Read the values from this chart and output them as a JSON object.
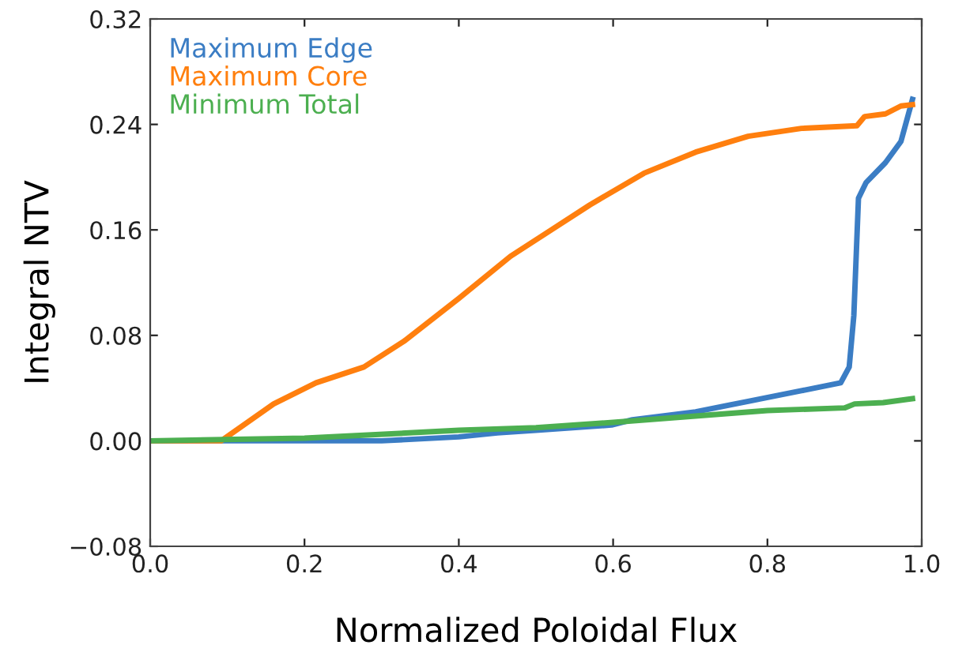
{
  "chart_data": {
    "type": "line",
    "xlabel": "Normalized Poloidal Flux",
    "ylabel": "Integral NTV",
    "xlim": [
      0.0,
      1.0
    ],
    "ylim": [
      -0.08,
      0.32
    ],
    "xticks": [
      {
        "value": 0.0,
        "label": "0.0"
      },
      {
        "value": 0.2,
        "label": "0.2"
      },
      {
        "value": 0.4,
        "label": "0.4"
      },
      {
        "value": 0.6,
        "label": "0.6"
      },
      {
        "value": 0.8,
        "label": "0.8"
      },
      {
        "value": 1.0,
        "label": "1.0"
      }
    ],
    "yticks": [
      {
        "value": -0.08,
        "label": "−0.08"
      },
      {
        "value": 0.0,
        "label": "0.00"
      },
      {
        "value": 0.08,
        "label": "0.08"
      },
      {
        "value": 0.16,
        "label": "0.16"
      },
      {
        "value": 0.24,
        "label": "0.24"
      },
      {
        "value": 0.32,
        "label": "0.32"
      }
    ],
    "grid": false,
    "legend": "top left",
    "marker": "none",
    "line_style": "solid",
    "series": [
      {
        "name": "Maximum Edge",
        "color": "#3b7dc4",
        "x": [
          0.0,
          0.2,
          0.3,
          0.4,
          0.45,
          0.5,
          0.598,
          0.625,
          0.707,
          0.775,
          0.844,
          0.895,
          0.906,
          0.912,
          0.918,
          0.928,
          0.953,
          0.973,
          0.988
        ],
        "values": [
          0.0,
          0.0,
          0.0,
          0.003,
          0.006,
          0.008,
          0.012,
          0.016,
          0.022,
          0.03,
          0.038,
          0.044,
          0.056,
          0.095,
          0.184,
          0.196,
          0.211,
          0.227,
          0.259
        ]
      },
      {
        "name": "Maximum Core",
        "color": "#ff7f0e",
        "x": [
          0.0,
          0.092,
          0.16,
          0.215,
          0.277,
          0.33,
          0.4,
          0.467,
          0.52,
          0.57,
          0.64,
          0.707,
          0.775,
          0.844,
          0.916,
          0.926,
          0.953,
          0.973,
          0.988
        ],
        "values": [
          0.0,
          0.0,
          0.028,
          0.044,
          0.056,
          0.076,
          0.108,
          0.14,
          0.16,
          0.179,
          0.203,
          0.219,
          0.231,
          0.237,
          0.239,
          0.246,
          0.248,
          0.254,
          0.255
        ]
      },
      {
        "name": "Minimum Total",
        "color": "#4caf50",
        "x": [
          0.0,
          0.2,
          0.4,
          0.5,
          0.6,
          0.8,
          0.9,
          0.913,
          0.95,
          0.988
        ],
        "values": [
          0.0,
          0.002,
          0.008,
          0.01,
          0.014,
          0.023,
          0.025,
          0.028,
          0.029,
          0.032
        ]
      }
    ]
  }
}
